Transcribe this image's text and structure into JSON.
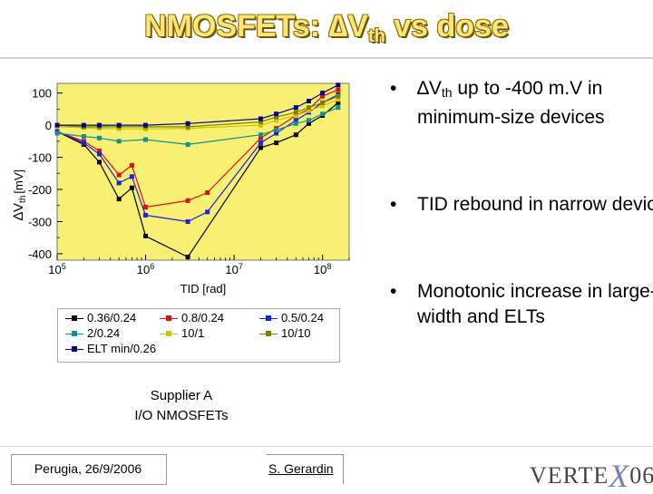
{
  "title": {
    "main": "NMOSFETs: ",
    "delta": "∆V",
    "sub": "th",
    "rest": " vs dose"
  },
  "bullets": [
    {
      "dot": "•",
      "parts": [
        "∆V",
        "th",
        " up to -400 m.V in minimum-size devices"
      ]
    },
    {
      "dot": "•",
      "text": "TID rebound in narrow devices"
    },
    {
      "dot": "•",
      "text": "Monotonic increase in large-width and ELTs"
    }
  ],
  "supplier": {
    "line1": "Supplier A",
    "line2": "I/O NMOSFETs"
  },
  "footer": {
    "date": "Perugia, 26/9/2006",
    "author": "S. Gerardin"
  },
  "logo": {
    "left": "VERTE",
    "x": "X",
    "right": "06"
  },
  "colors": {
    "plot_bg": "#f7f072",
    "title": "#ffe47a"
  },
  "chart_data": {
    "type": "line",
    "xscale": "log",
    "xlim": [
      100000,
      200000000
    ],
    "ylim": [
      -420,
      130
    ],
    "xlabel": "TID [rad]",
    "ylabel": "∆V th [mV]",
    "ylabel_main": "∆V",
    "ylabel_sub": "th",
    "ylabel_unit": "[mV]",
    "xticks": [
      {
        "value": 100000,
        "base": "10",
        "exp": "5"
      },
      {
        "value": 1000000,
        "base": "10",
        "exp": "6"
      },
      {
        "value": 10000000,
        "base": "10",
        "exp": "7"
      },
      {
        "value": 100000000,
        "base": "10",
        "exp": "8"
      }
    ],
    "yticks": [
      100,
      0,
      -100,
      -200,
      -300,
      -400
    ],
    "ytick_labels": [
      "100",
      "0",
      "-100",
      "-200",
      "-300",
      "-400"
    ],
    "series": [
      {
        "name": "0.36/0.24",
        "color": "#000000",
        "x": [
          100000,
          200000,
          300000,
          500000,
          700000,
          1000000,
          3000000,
          20000000,
          30000000,
          50000000,
          70000000,
          100000000,
          150000000
        ],
        "y": [
          -20,
          -60,
          -115,
          -230,
          -195,
          -345,
          -410,
          -70,
          -55,
          -30,
          5,
          30,
          70
        ]
      },
      {
        "name": "0.8/0.24",
        "color": "#e01010",
        "x": [
          100000,
          200000,
          300000,
          500000,
          700000,
          1000000,
          3000000,
          5000000,
          20000000,
          30000000,
          50000000,
          70000000,
          100000000,
          150000000
        ],
        "y": [
          -20,
          -50,
          -80,
          -155,
          -125,
          -255,
          -235,
          -210,
          -40,
          -10,
          30,
          50,
          90,
          110
        ]
      },
      {
        "name": "0.5/0.24",
        "color": "#1a22dd",
        "x": [
          100000,
          200000,
          300000,
          500000,
          700000,
          1000000,
          3000000,
          5000000,
          20000000,
          30000000,
          50000000,
          70000000,
          100000000,
          150000000
        ],
        "y": [
          -20,
          -55,
          -90,
          -180,
          -160,
          -280,
          -300,
          -270,
          -55,
          -25,
          15,
          40,
          70,
          95
        ]
      },
      {
        "name": "2/0.24",
        "color": "#129090",
        "x": [
          100000,
          200000,
          300000,
          500000,
          1000000,
          3000000,
          20000000,
          30000000,
          50000000,
          70000000,
          100000000,
          150000000
        ],
        "y": [
          -25,
          -35,
          -40,
          -50,
          -45,
          -60,
          -30,
          -15,
          5,
          15,
          35,
          55
        ]
      },
      {
        "name": "10/1",
        "color": "#c8c800",
        "x": [
          100000,
          200000,
          300000,
          500000,
          1000000,
          3000000,
          20000000,
          30000000,
          50000000,
          70000000,
          100000000,
          150000000
        ],
        "y": [
          -5,
          -8,
          -10,
          -12,
          -12,
          -10,
          0,
          15,
          30,
          45,
          60,
          80
        ]
      },
      {
        "name": "10/10",
        "color": "#808000",
        "x": [
          100000,
          200000,
          300000,
          500000,
          1000000,
          3000000,
          20000000,
          30000000,
          50000000,
          70000000,
          100000000,
          150000000
        ],
        "y": [
          0,
          -5,
          -5,
          -5,
          -5,
          -5,
          10,
          25,
          40,
          55,
          70,
          90
        ]
      },
      {
        "name": "ELT min/0.26",
        "color": "#00008b",
        "x": [
          100000,
          200000,
          300000,
          500000,
          1000000,
          3000000,
          20000000,
          30000000,
          50000000,
          70000000,
          100000000,
          150000000
        ],
        "y": [
          0,
          0,
          0,
          0,
          0,
          5,
          20,
          35,
          55,
          75,
          100,
          125
        ]
      }
    ]
  }
}
